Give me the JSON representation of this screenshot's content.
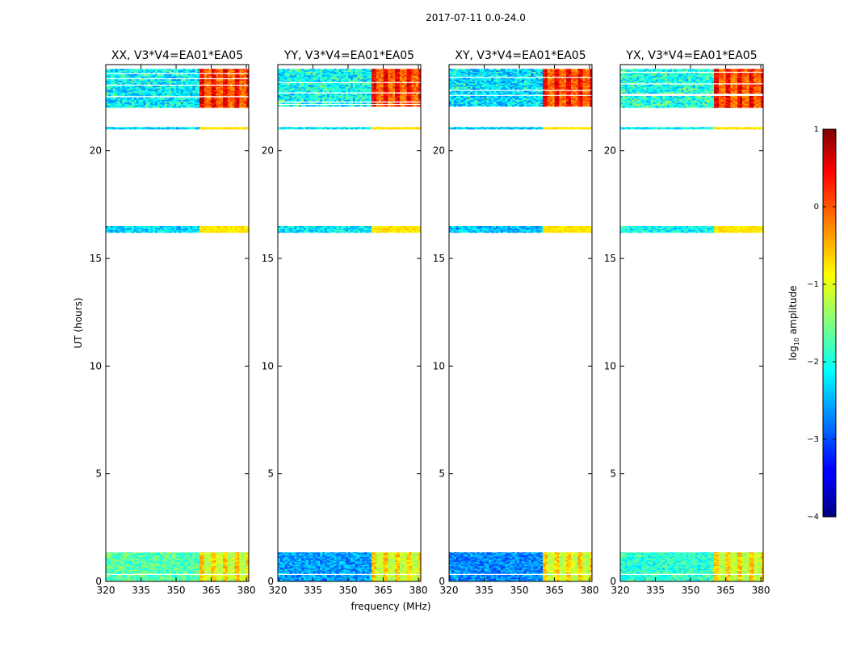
{
  "figure_title": "2017-07-11 0.0-24.0",
  "chart_data": {
    "type": "heatmap",
    "suptitle": "2017-07-11 0.0-24.0",
    "xlabel": "frequency (MHz)",
    "ylabel": "UT (hours)",
    "xlim": [
      320,
      381
    ],
    "ylim": [
      0,
      24
    ],
    "xticks": [
      "320",
      "335",
      "350",
      "365",
      "380"
    ],
    "xtick_values": [
      320,
      335,
      350,
      365,
      380
    ],
    "yticks": [
      "0",
      "5",
      "10",
      "15",
      "20"
    ],
    "ytick_values": [
      0,
      5,
      10,
      15,
      20
    ],
    "panels": [
      {
        "title": "XX, V3*V4=EA01*EA05",
        "pol": "XX",
        "rfi_band": [
          359.5,
          380.0
        ],
        "base_low": -1.7,
        "base_high": -2.3
      },
      {
        "title": "YY, V3*V4=EA01*EA05",
        "pol": "YY",
        "rfi_band": [
          359.5,
          380.0
        ],
        "base_low": -2.6,
        "base_high": -2.2
      },
      {
        "title": "XY, V3*V4=EA01*EA05",
        "pol": "XY",
        "rfi_band": [
          359.5,
          380.0
        ],
        "base_low": -2.7,
        "base_high": -2.4
      },
      {
        "title": "YX, V3*V4=EA01*EA05",
        "pol": "YX",
        "rfi_band": [
          359.5,
          380.0
        ],
        "base_low": -1.9,
        "base_high": -2.1
      }
    ],
    "data_time_ranges_hours": [
      [
        0.0,
        1.35
      ],
      [
        16.2,
        16.5
      ],
      [
        21.0,
        21.1
      ],
      [
        22.0,
        23.8
      ]
    ],
    "colorbar": {
      "label": "log",
      "label_sub": "10",
      "label_rest": " amplitude",
      "min": -4,
      "max": 1,
      "ticks": [
        "1",
        "0",
        "−1",
        "−2",
        "−3",
        "−4"
      ],
      "tick_values": [
        1,
        0,
        -1,
        -2,
        -3,
        -4
      ],
      "colormap": "jet"
    }
  }
}
